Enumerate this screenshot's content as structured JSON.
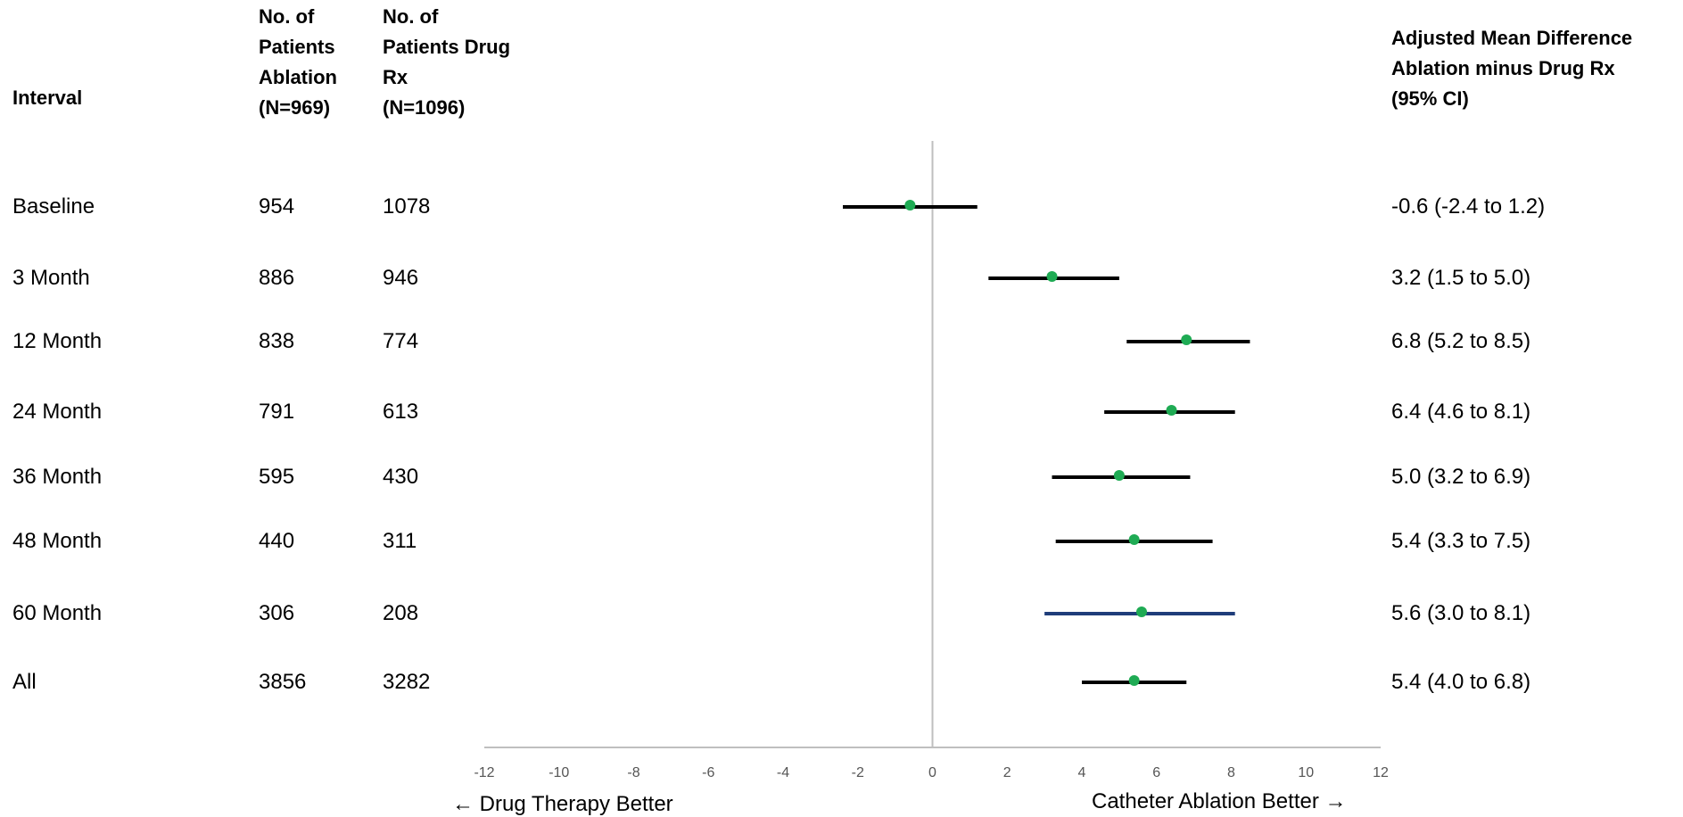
{
  "headers": {
    "interval": "Interval",
    "ablation": [
      "No. of",
      "Patients",
      "Ablation",
      "(N=969)"
    ],
    "drug": [
      "No. of",
      "Patients Drug",
      "Rx",
      "(N=1096)"
    ],
    "difference": [
      "Adjusted Mean Difference",
      "Ablation minus Drug Rx",
      "(95% CI)"
    ]
  },
  "axis": {
    "left_label": "← Drug Therapy Better",
    "right_label": "Catheter Ablation Better →"
  },
  "colors": {
    "point": "#1fab54",
    "ci_line": "#000000",
    "ci_line_60": "#1f3d7a",
    "axis": "#bfbfbf"
  },
  "chart_data": {
    "type": "forest",
    "xlim": [
      -12,
      12
    ],
    "xticks": [
      -12,
      -10,
      -8,
      -6,
      -4,
      -2,
      0,
      2,
      4,
      6,
      8,
      10,
      12
    ],
    "reference_line": 0,
    "rows": [
      {
        "interval": "Baseline",
        "ablation_n": "954",
        "drug_n": "1078",
        "mean": -0.6,
        "lower": -2.4,
        "upper": 1.2,
        "label": "-0.6 (-2.4 to 1.2)"
      },
      {
        "interval": "3 Month",
        "ablation_n": "886",
        "drug_n": "946",
        "mean": 3.2,
        "lower": 1.5,
        "upper": 5.0,
        "label": "3.2 (1.5 to 5.0)"
      },
      {
        "interval": "12 Month",
        "ablation_n": "838",
        "drug_n": "774",
        "mean": 6.8,
        "lower": 5.2,
        "upper": 8.5,
        "label": "6.8 (5.2 to 8.5)"
      },
      {
        "interval": "24 Month",
        "ablation_n": "791",
        "drug_n": "613",
        "mean": 6.4,
        "lower": 4.6,
        "upper": 8.1,
        "label": "6.4 (4.6 to 8.1)"
      },
      {
        "interval": "36 Month",
        "ablation_n": "595",
        "drug_n": "430",
        "mean": 5.0,
        "lower": 3.2,
        "upper": 6.9,
        "label": "5.0 (3.2 to 6.9)"
      },
      {
        "interval": "48 Month",
        "ablation_n": "440",
        "drug_n": "311",
        "mean": 5.4,
        "lower": 3.3,
        "upper": 7.5,
        "label": "5.4 (3.3 to 7.5)"
      },
      {
        "interval": "60 Month",
        "ablation_n": "306",
        "drug_n": "208",
        "mean": 5.6,
        "lower": 3.0,
        "upper": 8.1,
        "label": "5.6 (3.0 to 8.1)"
      },
      {
        "interval": "All",
        "ablation_n": "3856",
        "drug_n": "3282",
        "mean": 5.4,
        "lower": 4.0,
        "upper": 6.8,
        "label": "5.4 (4.0 to 6.8)"
      }
    ]
  }
}
